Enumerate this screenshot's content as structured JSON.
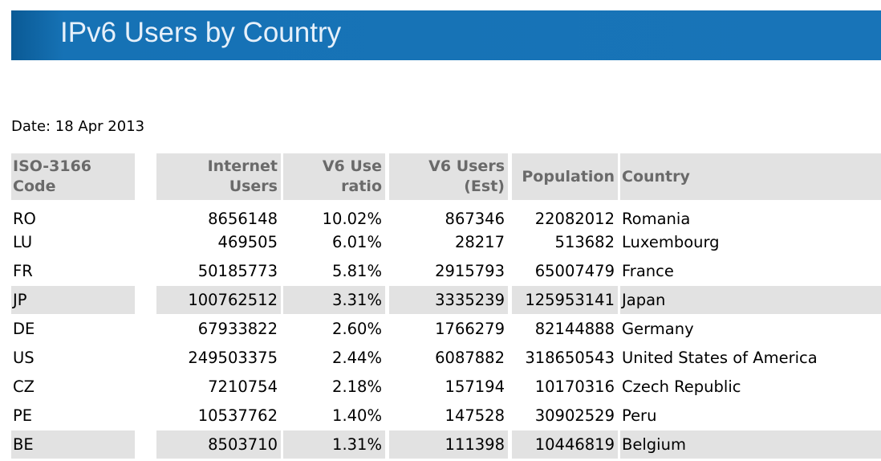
{
  "header": {
    "title": "IPv6 Users by Country"
  },
  "date": "Date: 18 Apr 2013",
  "table": {
    "columns": [
      [
        "ISO-3166",
        "Code"
      ],
      [
        "Internet",
        "Users"
      ],
      [
        "V6 Use",
        "ratio"
      ],
      [
        "V6 Users",
        "(Est)"
      ],
      [
        "Population"
      ],
      [
        "Country"
      ]
    ],
    "rows": [
      [
        "RO",
        "8656148",
        "10.02%",
        "867346",
        "22082012",
        "Romania"
      ],
      [
        "LU",
        "469505",
        "6.01%",
        "28217",
        "513682",
        "Luxembourg"
      ],
      [
        "FR",
        "50185773",
        "5.81%",
        "2915793",
        "65007479",
        "France"
      ],
      [
        "JP",
        "100762512",
        "3.31%",
        "3335239",
        "125953141",
        "Japan"
      ],
      [
        "DE",
        "67933822",
        "2.60%",
        "1766279",
        "82144888",
        "Germany"
      ],
      [
        "US",
        "249503375",
        "2.44%",
        "6087882",
        "318650543",
        "United States of America"
      ],
      [
        "CZ",
        "7210754",
        "2.18%",
        "157194",
        "10170316",
        "Czech Republic"
      ],
      [
        "PE",
        "10537762",
        "1.40%",
        "147528",
        "30902529",
        "Peru"
      ],
      [
        "BE",
        "8503710",
        "1.31%",
        "111398",
        "10446819",
        "Belgium"
      ]
    ]
  }
}
